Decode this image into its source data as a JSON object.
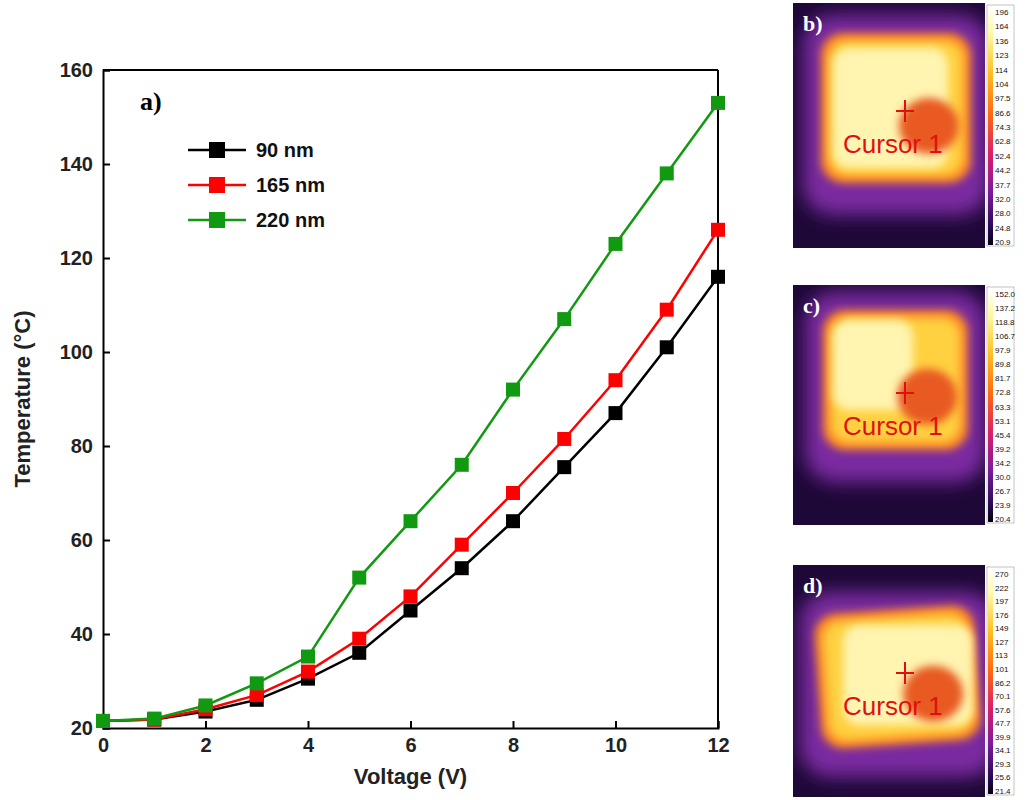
{
  "chart_data": {
    "type": "line",
    "annotations": [
      "a)"
    ],
    "x_label": "Voltage (V)",
    "y_label": "Temperature (°C)",
    "x": [
      0,
      1,
      2,
      3,
      4,
      5,
      6,
      7,
      8,
      9,
      10,
      11,
      12
    ],
    "series": [
      {
        "name": "90 nm",
        "color": "#000000",
        "marker": "square",
        "line_style": "solid",
        "values": [
          21.5,
          21.8,
          23.5,
          26,
          30.5,
          36,
          45,
          54,
          64,
          75.5,
          87,
          101,
          116
        ]
      },
      {
        "name": "165 nm",
        "color": "#ff0000",
        "marker": "square",
        "line_style": "solid",
        "values": [
          21.5,
          21.8,
          24,
          27,
          32,
          39,
          48,
          59,
          70,
          81.5,
          94,
          109,
          126
        ]
      },
      {
        "name": "220 nm",
        "color": "#119911",
        "marker": "square",
        "line_style": "solid",
        "values": [
          21.5,
          22,
          24.8,
          29.5,
          35.2,
          52,
          64,
          76,
          92,
          107,
          123,
          138,
          153
        ]
      }
    ],
    "xlim": [
      0,
      12
    ],
    "xticks": [
      0,
      2,
      4,
      6,
      8,
      10,
      12
    ],
    "ylim": [
      20,
      160
    ],
    "yticks": [
      20,
      40,
      60,
      80,
      100,
      120,
      140,
      160
    ],
    "grid": false,
    "legend": "upper left"
  },
  "thermal_images": [
    {
      "label": "b)",
      "cursor_label": "Cursor 1",
      "colorbar_ticks": [
        196,
        164,
        136,
        123,
        114,
        104,
        97.5,
        86.6,
        74.3,
        62.8,
        52.4,
        44.2,
        37.7,
        {
          "value": 32,
          "label": "32.0"
        },
        {
          "value": 28,
          "label": "28.0"
        },
        24.8,
        20.9
      ]
    },
    {
      "label": "c)",
      "cursor_label": "Cursor 1",
      "colorbar_ticks": [
        {
          "value": 152,
          "label": "152.0"
        },
        137.2,
        118.8,
        106.7,
        97.9,
        89.8,
        81.7,
        72.8,
        63.3,
        53.1,
        45.4,
        39.2,
        34.2,
        {
          "value": 30,
          "label": "30.0"
        },
        26.7,
        23.9,
        20.4
      ]
    },
    {
      "label": "d)",
      "cursor_label": "Cursor 1",
      "colorbar_ticks": [
        270,
        222,
        197,
        176,
        149,
        127,
        113,
        101,
        86.2,
        70.1,
        57.6,
        47.7,
        39.9,
        34.1,
        29.3,
        25.6,
        21.4
      ]
    }
  ]
}
